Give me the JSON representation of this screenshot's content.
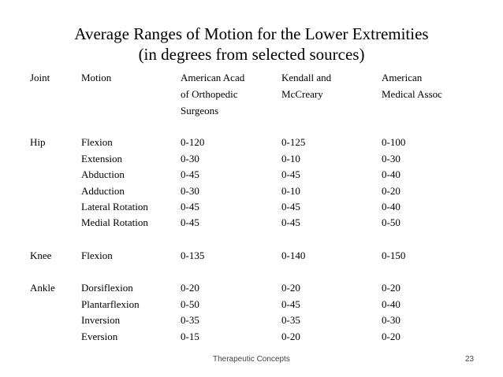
{
  "title": {
    "line1": "Average Ranges of Motion for the Lower Extremities",
    "line2": "(in degrees from selected sources)"
  },
  "headers": {
    "joint": "Joint",
    "motion": "Motion",
    "aaos": [
      "American  Acad",
      "of Orthopedic",
      "Surgeons"
    ],
    "kendall": [
      "Kendall and",
      "McCreary"
    ],
    "ama": [
      "American",
      "Medical Assoc"
    ]
  },
  "rows": [
    {
      "joint": "Hip",
      "motion": "Flexion",
      "aaos": "0-120",
      "kendall": "0-125",
      "ama": "0-100"
    },
    {
      "joint": "",
      "motion": "Extension",
      "aaos": "0-30",
      "kendall": "0-10",
      "ama": "0-30"
    },
    {
      "joint": "",
      "motion": "Abduction",
      "aaos": "0-45",
      "kendall": "0-45",
      "ama": "0-40"
    },
    {
      "joint": "",
      "motion": "Adduction",
      "aaos": "0-30",
      "kendall": "0-10",
      "ama": "0-20"
    },
    {
      "joint": "",
      "motion": "Lateral Rotation",
      "aaos": "0-45",
      "kendall": "0-45",
      "ama": "0-40"
    },
    {
      "joint": "",
      "motion": "Medial Rotation",
      "aaos": "0-45",
      "kendall": "0-45",
      "ama": "0-50"
    },
    {
      "joint": "Knee",
      "motion": "Flexion",
      "aaos": "0-135",
      "kendall": "0-140",
      "ama": "0-150"
    },
    {
      "joint": "Ankle",
      "motion": "Dorsiflexion",
      "aaos": "0-20",
      "kendall": "0-20",
      "ama": "0-20"
    },
    {
      "joint": "",
      "motion": "Plantarflexion",
      "aaos": "0-50",
      "kendall": "0-45",
      "ama": "0-40"
    },
    {
      "joint": "",
      "motion": "Inversion",
      "aaos": "0-35",
      "kendall": "0-35",
      "ama": "0-30"
    },
    {
      "joint": "",
      "motion": "Eversion",
      "aaos": "0-15",
      "kendall": "0-20",
      "ama": "0-20"
    }
  ],
  "footer": {
    "text": "Therapeutic Concepts",
    "page": "23"
  }
}
